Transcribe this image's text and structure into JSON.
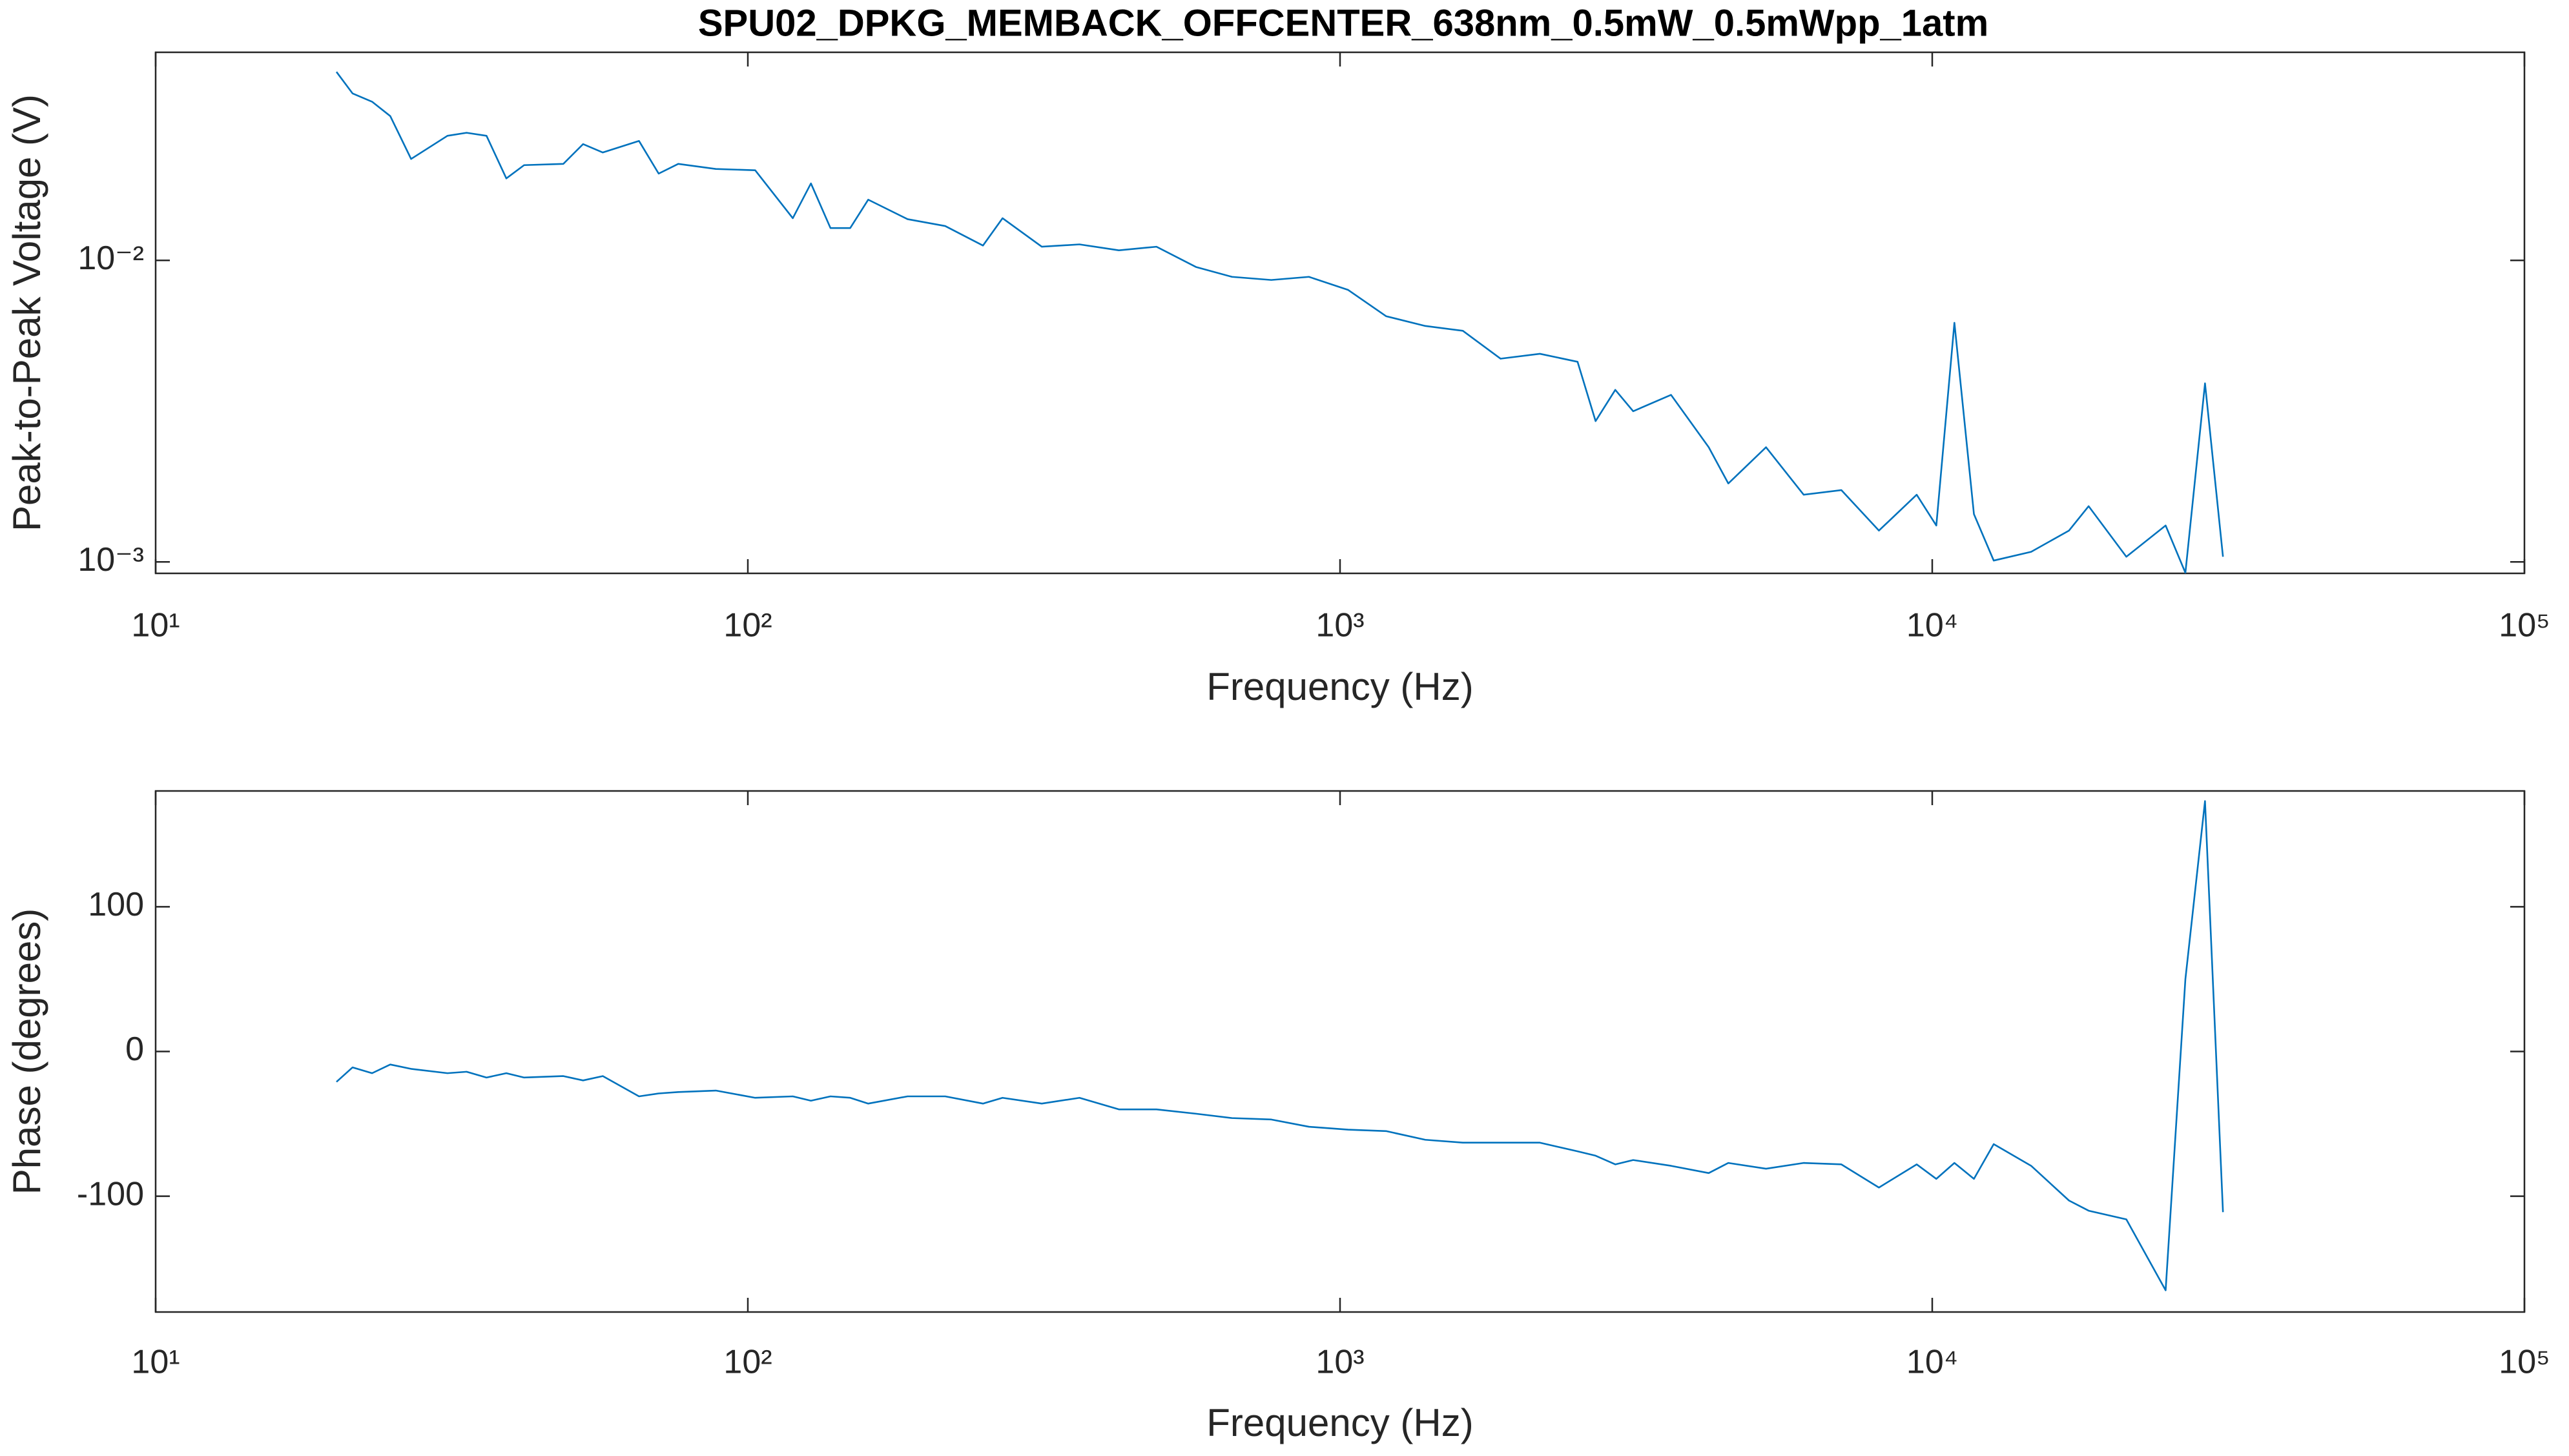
{
  "chart_data": [
    {
      "type": "line",
      "title": "SPU02_DPKG_MEMBACK_OFFCENTER_638nm_0.5mW_0.5mWpp_1atm",
      "xlabel": "Frequency (Hz)",
      "ylabel": "Peak-to-Peak Voltage (V)",
      "xscale": "log",
      "yscale": "log",
      "color": "#0072BD",
      "xlim": [
        10,
        100000
      ],
      "xticks": [
        {
          "value": 10,
          "label": "10¹"
        },
        {
          "value": 100,
          "label": "10²"
        },
        {
          "value": 1000,
          "label": "10³"
        },
        {
          "value": 10000,
          "label": "10⁴"
        },
        {
          "value": 100000,
          "label": "10⁵"
        }
      ],
      "ylim": [
        0.000916,
        0.049
      ],
      "yticks": [
        {
          "value": 0.001,
          "label": "10⁻³"
        },
        {
          "value": 0.01,
          "label": "10⁻²"
        }
      ],
      "x": [
        20.2,
        21.5,
        23.2,
        24.9,
        27.0,
        31.1,
        33.5,
        36.2,
        39.1,
        41.9,
        48.8,
        52.7,
        56.9,
        65.5,
        70.7,
        76.3,
        88.3,
        102.9,
        119.1,
        127.8,
        137.9,
        148.9,
        159.7,
        186.1,
        215.4,
        249.5,
        269.2,
        313.6,
        363.1,
        423.2,
        489.8,
        571,
        656.9,
        765.4,
        886,
        1032,
        1196,
        1393,
        1612,
        1867,
        2175,
        2518,
        2701,
        2916,
        3126,
        3622,
        4193,
        4525,
        5240,
        6066,
        7023,
        8128,
        9413,
        10160,
        10900,
        11760,
        12700,
        14690,
        17020,
        18370,
        21270,
        24780,
        26760,
        28880,
        30970
      ],
      "values": [
        0.0422,
        0.0358,
        0.0336,
        0.0301,
        0.0217,
        0.0259,
        0.0265,
        0.0259,
        0.0187,
        0.0207,
        0.0209,
        0.0243,
        0.0228,
        0.0249,
        0.0194,
        0.0209,
        0.0201,
        0.0199,
        0.0138,
        0.018,
        0.0128,
        0.0128,
        0.0159,
        0.0137,
        0.013,
        0.0112,
        0.0138,
        0.0111,
        0.0113,
        0.0108,
        0.0111,
        0.00951,
        0.00882,
        0.00861,
        0.00882,
        0.00798,
        0.00653,
        0.00606,
        0.00584,
        0.00472,
        0.0049,
        0.00461,
        0.00293,
        0.00372,
        0.00316,
        0.00358,
        0.0024,
        0.00182,
        0.0024,
        0.00167,
        0.00173,
        0.00127,
        0.00167,
        0.00132,
        0.00621,
        0.00144,
        0.00101,
        0.00108,
        0.00127,
        0.00153,
        0.00104,
        0.00132,
        0.00092,
        0.00391,
        0.00104
      ]
    },
    {
      "type": "line",
      "xlabel": "Frequency (Hz)",
      "ylabel": "Phase (degrees)",
      "xscale": "log",
      "yscale": "linear",
      "color": "#0072BD",
      "xlim": [
        10,
        100000
      ],
      "xticks": [
        {
          "value": 10,
          "label": "10¹"
        },
        {
          "value": 100,
          "label": "10²"
        },
        {
          "value": 1000,
          "label": "10³"
        },
        {
          "value": 10000,
          "label": "10⁴"
        },
        {
          "value": 100000,
          "label": "10⁵"
        }
      ],
      "ylim": [
        -180,
        180
      ],
      "yticks": [
        -100,
        0,
        100
      ],
      "x": [
        20.2,
        21.5,
        23.2,
        24.9,
        27.0,
        31.1,
        33.5,
        36.2,
        39.1,
        41.9,
        48.8,
        52.7,
        56.9,
        65.5,
        70.7,
        76.3,
        88.3,
        102.9,
        119.1,
        127.8,
        137.9,
        148.9,
        159.7,
        186.1,
        215.4,
        249.5,
        269.2,
        313.6,
        363.1,
        423.2,
        489.8,
        571,
        656.9,
        765.4,
        886,
        1032,
        1196,
        1393,
        1612,
        1867,
        2175,
        2518,
        2701,
        2916,
        3126,
        3622,
        4193,
        4525,
        5240,
        6066,
        7023,
        8128,
        9413,
        10160,
        10900,
        11760,
        12700,
        14690,
        17020,
        18370,
        21270,
        24780,
        26760,
        28880,
        30970
      ],
      "values": [
        -21,
        -11,
        -15,
        -9,
        -12,
        -15,
        -14,
        -18,
        -15,
        -18,
        -17,
        -20,
        -17,
        -31,
        -29,
        -28,
        -27,
        -32,
        -31,
        -34,
        -31,
        -32,
        -36,
        -31,
        -31,
        -36,
        -32,
        -36,
        -32,
        -40,
        -40,
        -43,
        -46,
        -47,
        -52,
        -54,
        -55,
        -61,
        -63,
        -63,
        -63,
        -69,
        -72,
        -78,
        -75,
        -79,
        -84,
        -77,
        -81,
        -77,
        -78,
        -94,
        -78,
        -88,
        -77,
        -88,
        -64,
        -79,
        -103,
        -110,
        -116,
        -165,
        50,
        173,
        -111
      ]
    }
  ]
}
